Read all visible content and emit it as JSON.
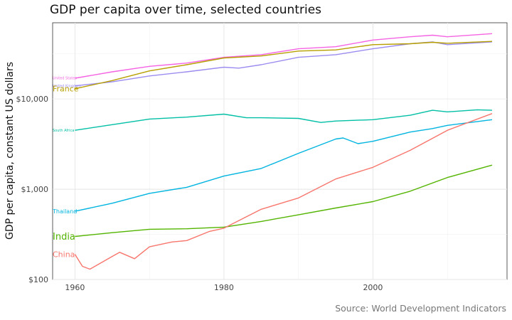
{
  "chart_data": {
    "type": "line",
    "title": "GDP per capita over time, selected countries",
    "ylabel": "GDP per capita, constant US dollars",
    "xlabel": "",
    "caption": "Source: World Development Indicators",
    "y_scale": "log",
    "xlim": [
      1957,
      2018
    ],
    "ylim": [
      100,
      70000
    ],
    "x_ticks": [
      1960,
      1980,
      2000
    ],
    "y_ticks": [
      100,
      1000,
      10000
    ],
    "y_tick_labels": [
      "$100",
      "$1,000",
      "$10,000"
    ],
    "grid": true,
    "legend": "direct labels at line start",
    "series": [
      {
        "name": "United States",
        "color": "#F564E3",
        "label_size": 5,
        "x": [
          1960,
          1965,
          1970,
          1975,
          1980,
          1985,
          1990,
          1995,
          2000,
          2005,
          2008,
          2010,
          2016
        ],
        "values": [
          17000,
          20000,
          23000,
          25000,
          29000,
          31000,
          36000,
          38000,
          45000,
          49000,
          51000,
          49000,
          53000
        ]
      },
      {
        "name": "United Kingdom",
        "color": "#9B8CF0",
        "label_size": 5,
        "x": [
          1960,
          1965,
          1970,
          1975,
          1980,
          1982,
          1985,
          1990,
          1995,
          2000,
          2005,
          2008,
          2010,
          2016
        ],
        "values": [
          14000,
          15500,
          18000,
          20000,
          22500,
          22000,
          24000,
          29000,
          31000,
          36000,
          41000,
          43000,
          40000,
          43000
        ]
      },
      {
        "name": "France",
        "color": "#B79F00",
        "label_size": 11,
        "x": [
          1960,
          1965,
          1970,
          1975,
          1980,
          1985,
          1990,
          1995,
          2000,
          2005,
          2008,
          2010,
          2016
        ],
        "values": [
          13000,
          16000,
          20500,
          24000,
          28500,
          30000,
          34000,
          35000,
          40000,
          41000,
          42500,
          41500,
          43500
        ]
      },
      {
        "name": "South Africa",
        "color": "#00BFA5",
        "label_size": 5,
        "x": [
          1960,
          1965,
          1970,
          1975,
          1980,
          1983,
          1985,
          1990,
          1993,
          1995,
          2000,
          2005,
          2008,
          2010,
          2014,
          2016
        ],
        "values": [
          4500,
          5200,
          6000,
          6300,
          6800,
          6200,
          6200,
          6100,
          5500,
          5700,
          5900,
          6600,
          7500,
          7200,
          7600,
          7500
        ]
      },
      {
        "name": "Thailand",
        "color": "#00B4E0",
        "label_size": 8,
        "x": [
          1960,
          1965,
          1970,
          1975,
          1980,
          1985,
          1990,
          1995,
          1996,
          1998,
          2000,
          2005,
          2008,
          2010,
          2016
        ],
        "values": [
          570,
          700,
          900,
          1050,
          1400,
          1700,
          2500,
          3600,
          3700,
          3200,
          3400,
          4300,
          4700,
          5100,
          5900
        ]
      },
      {
        "name": "India",
        "color": "#53B400",
        "label_size": 13,
        "x": [
          1960,
          1965,
          1970,
          1975,
          1980,
          1985,
          1990,
          1995,
          2000,
          2005,
          2010,
          2016
        ],
        "values": [
          300,
          330,
          360,
          365,
          380,
          440,
          520,
          620,
          730,
          950,
          1350,
          1850
        ]
      },
      {
        "name": "China",
        "color": "#F8766D",
        "label_size": 11,
        "x": [
          1960,
          1961,
          1962,
          1965,
          1966,
          1968,
          1970,
          1973,
          1975,
          1978,
          1980,
          1985,
          1990,
          1995,
          2000,
          2005,
          2010,
          2016
        ],
        "values": [
          190,
          140,
          130,
          180,
          200,
          170,
          230,
          260,
          270,
          340,
          370,
          600,
          800,
          1300,
          1750,
          2700,
          4500,
          6900
        ]
      }
    ]
  }
}
